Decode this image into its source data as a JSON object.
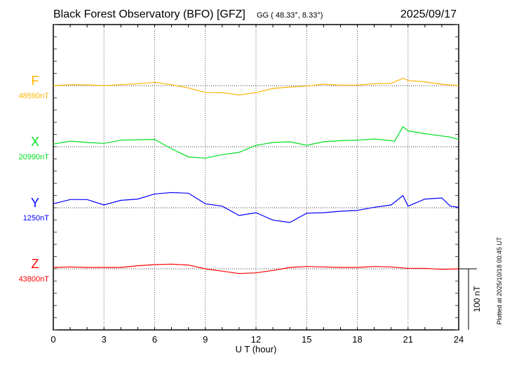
{
  "header": {
    "title": "Black Forest Observatory (BFO)  [GFZ]",
    "coords": "GG ( 48.33°,   8.33°)",
    "date": "2025/09/17"
  },
  "footer": {
    "plotted": "Plotted at 2025/10/18 00:45 UT"
  },
  "chart_data": {
    "type": "line",
    "title": "Black Forest Observatory (BFO)  [GFZ]",
    "xlabel": "U T (hour)",
    "xlim": [
      0,
      24
    ],
    "xticks": [
      "0",
      "3",
      "6",
      "9",
      "12",
      "15",
      "18",
      "21",
      "24"
    ],
    "xtick_values": [
      0,
      3,
      6,
      9,
      12,
      15,
      18,
      21,
      24
    ],
    "grid": true,
    "scale_bar": {
      "label": "100 nT",
      "value_nT": 100
    },
    "y_tick_step_nT": 20,
    "series": [
      {
        "name": "F",
        "baseline_label": "48590nT",
        "baseline_nT": 48590,
        "color": "#FFB300",
        "x": [
          0,
          1,
          2,
          3,
          4,
          5,
          6,
          7,
          8,
          9,
          10,
          11,
          12,
          13,
          14,
          15,
          16,
          17,
          18,
          19,
          20,
          20.7,
          21,
          22,
          23,
          24
        ],
        "delta_nT": [
          0,
          1.5,
          1.1,
          0,
          1.5,
          3.1,
          5.4,
          1.5,
          -3.8,
          -11.1,
          -11.4,
          -15.3,
          -11.4,
          -4.6,
          -2.3,
          -0.8,
          2.3,
          0.8,
          0.8,
          3.1,
          3.8,
          11.9,
          8.4,
          6.2,
          2.3,
          0
        ]
      },
      {
        "name": "X",
        "baseline_label": "20990nT",
        "baseline_nT": 20990,
        "color": "#00E020",
        "x": [
          0,
          1,
          2,
          3,
          4,
          5,
          6,
          7,
          8,
          9,
          10,
          11,
          12,
          13,
          14,
          15,
          16,
          17,
          18,
          19,
          20,
          20.2,
          20.7,
          21,
          22,
          23,
          23.5,
          24
        ],
        "delta_nT": [
          4.2,
          9.2,
          6.9,
          5.4,
          10.7,
          11.4,
          11.9,
          -3.4,
          -16.8,
          -18.7,
          -13,
          -9.2,
          2.3,
          6.9,
          8,
          2.3,
          8,
          9.9,
          10.7,
          12.6,
          9.9,
          8.8,
          32.9,
          26,
          21.4,
          17.6,
          15.7,
          11.9
        ]
      },
      {
        "name": "Y",
        "baseline_label": "1250nT",
        "baseline_nT": 1250,
        "color": "#0000FF",
        "x": [
          0,
          1,
          2,
          3,
          4,
          5,
          6,
          7,
          8,
          9,
          10,
          11,
          12,
          13,
          14,
          15,
          16,
          17,
          18,
          19,
          20,
          20.7,
          21,
          22,
          23,
          23.5,
          24
        ],
        "delta_nT": [
          6.5,
          13.4,
          13.4,
          4.6,
          12.2,
          14.2,
          22.6,
          24.9,
          23.8,
          6.5,
          2.6,
          -12.6,
          -8,
          -20.2,
          -24.1,
          -8.8,
          -8,
          -5.7,
          -4.2,
          0.8,
          4.6,
          19.9,
          2.6,
          14.2,
          16.1,
          2.6,
          0.8
        ]
      },
      {
        "name": "Z",
        "baseline_label": "43800nT",
        "baseline_nT": 43800,
        "color": "#FF0000",
        "x": [
          0,
          1,
          2,
          3,
          4,
          5,
          6,
          7,
          8,
          9,
          10,
          11,
          12,
          13,
          14,
          15,
          16,
          17,
          18,
          19,
          20,
          21,
          22,
          23,
          24
        ],
        "delta_nT": [
          2.3,
          3.1,
          2.3,
          2.3,
          2.3,
          5,
          6.9,
          7.7,
          6.2,
          0,
          -3.8,
          -7.7,
          -6.5,
          -2.6,
          2.3,
          3.8,
          3.1,
          2.3,
          2.3,
          3.8,
          3.1,
          0.8,
          0.8,
          -0.8,
          0
        ]
      }
    ]
  }
}
